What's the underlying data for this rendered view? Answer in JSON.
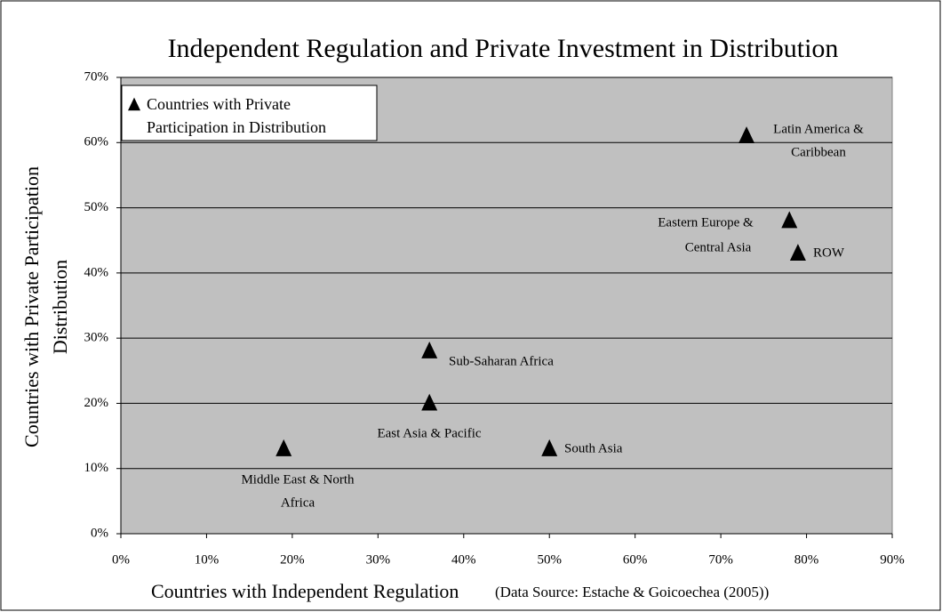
{
  "chart_data": {
    "type": "scatter",
    "title": "Independent Regulation and Private Investment in Distribution",
    "xlabel": "Countries with Independent Regulation",
    "ylabel": [
      "Countries with Private Participation",
      "Distribution"
    ],
    "source": "(Data Source: Estache & Goicoechea (2005))",
    "series": [
      {
        "name": "Countries with Private Participation in Distribution",
        "color": "#000000",
        "x": [
          73,
          78,
          79,
          36,
          36,
          50,
          19
        ],
        "values": [
          61,
          48,
          43,
          28,
          20,
          13,
          13
        ]
      }
    ],
    "point_labels": [
      [
        "Latin America &",
        "Caribbean"
      ],
      [
        "Eastern Europe &",
        "Central Asia"
      ],
      [
        "ROW"
      ],
      [
        "Sub-Saharan Africa"
      ],
      [
        "East Asia & Pacific"
      ],
      [
        "South Asia"
      ],
      [
        "Middle East & North",
        "Africa"
      ]
    ],
    "xlim": [
      0,
      90
    ],
    "ylim": [
      0,
      70
    ],
    "xticks": [
      {
        "value": 0,
        "label": "0%"
      },
      {
        "value": 10,
        "label": "10%"
      },
      {
        "value": 20,
        "label": "20%"
      },
      {
        "value": 30,
        "label": "30%"
      },
      {
        "value": 40,
        "label": "40%"
      },
      {
        "value": 50,
        "label": "50%"
      },
      {
        "value": 60,
        "label": "60%"
      },
      {
        "value": 70,
        "label": "70%"
      },
      {
        "value": 80,
        "label": "80%"
      },
      {
        "value": 90,
        "label": "90%"
      }
    ],
    "yticks": [
      {
        "value": 0,
        "label": "0%"
      },
      {
        "value": 10,
        "label": "10%"
      },
      {
        "value": 20,
        "label": "20%"
      },
      {
        "value": 30,
        "label": "30%"
      },
      {
        "value": 40,
        "label": "40%"
      },
      {
        "value": 50,
        "label": "50%"
      },
      {
        "value": 60,
        "label": "60%"
      },
      {
        "value": 70,
        "label": "70%"
      }
    ],
    "grid": true,
    "plot_background": "#c0c0c0",
    "legend": "top-left"
  }
}
